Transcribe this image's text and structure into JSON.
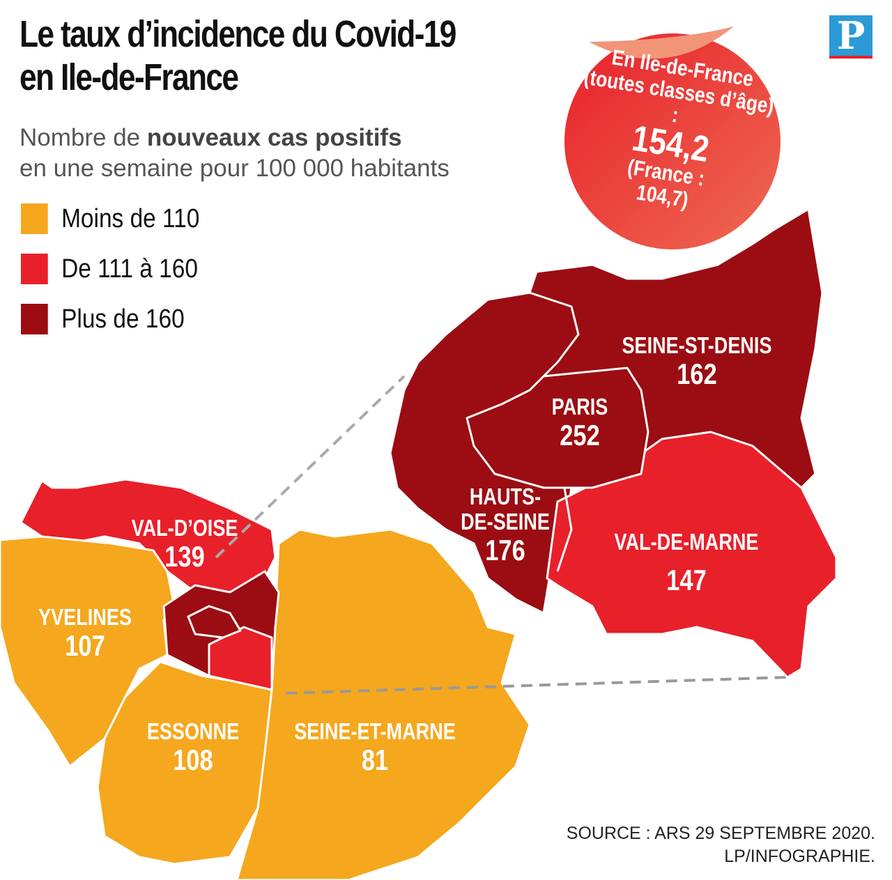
{
  "title_line1": "Le taux d’incidence du Covid-19",
  "title_line2": "en Ile-de-France",
  "subtitle_pre": "Nombre de ",
  "subtitle_bold": "nouveaux cas positifs",
  "subtitle_line2": "en une semaine pour 100 000 habitants",
  "logo": "P",
  "legend": [
    {
      "label": "Moins de 110",
      "color": "#f5a71e"
    },
    {
      "label": "De 111 à 160",
      "color": "#e8202a"
    },
    {
      "label": "Plus de 160",
      "color": "#9b0d13"
    }
  ],
  "sticker": {
    "line1": "En Ile-de-France",
    "line2": "(toutes classes d’âge) :",
    "value": "154,2",
    "line3": "(France :",
    "line4": "104,7)"
  },
  "departments": {
    "val_doise": {
      "name": "VAL-D’OISE",
      "value": "139"
    },
    "yvelines": {
      "name": "YVELINES",
      "value": "107"
    },
    "essonne": {
      "name": "ESSONNE",
      "value": "108"
    },
    "seine_et_marne": {
      "name": "SEINE-ET-MARNE",
      "value": "81"
    },
    "seine_st_denis": {
      "name": "SEINE-ST-DENIS",
      "value": "162"
    },
    "paris": {
      "name": "PARIS",
      "value": "252"
    },
    "hauts_de_seine": {
      "name1": "HAUTS-",
      "name2": "DE-SEINE",
      "value": "176"
    },
    "val_de_marne": {
      "name": "VAL-DE-MARNE",
      "value": "147"
    }
  },
  "source_line1": "SOURCE : ARS 29 SEPTEMBRE 2020.",
  "source_line2": "LP/INFOGRAPHIE."
}
